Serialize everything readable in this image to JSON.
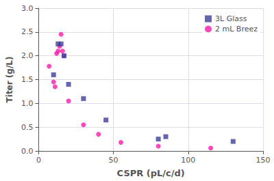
{
  "chart_data": {
    "type": "scatter",
    "xlabel": "CSPR (pL/c/d)",
    "ylabel": "Titer (g/L)",
    "xlim": [
      0,
      150
    ],
    "ylim": [
      0.0,
      3.0
    ],
    "xticks": [
      0,
      50,
      100,
      150
    ],
    "yticks": [
      {
        "value": 0.0,
        "label": "0.0"
      },
      0.5,
      {
        "value": 1.0,
        "label": "1.0"
      },
      1.5,
      {
        "value": 2.0,
        "label": "2.0"
      },
      2.5,
      {
        "value": 3.0,
        "label": "3.0"
      }
    ],
    "grid": true,
    "legend": "upper right",
    "series": [
      {
        "name": "3L Glass",
        "color": "#3d3d9e",
        "marker": "square",
        "x": [
          10,
          13,
          15,
          17,
          20,
          30,
          45,
          80,
          85,
          130
        ],
        "values": [
          1.6,
          2.25,
          2.25,
          2.0,
          1.4,
          1.1,
          0.65,
          0.25,
          0.3,
          0.2
        ]
      },
      {
        "name": "2 mL Breez",
        "color": "#ff1aaa",
        "marker": "circle",
        "x": [
          7,
          10,
          11,
          12,
          13,
          14,
          15,
          16,
          17,
          20,
          30,
          40,
          55,
          80,
          115
        ],
        "values": [
          1.78,
          1.45,
          1.35,
          2.05,
          2.1,
          2.2,
          2.45,
          2.1,
          2.0,
          1.05,
          0.55,
          0.35,
          0.18,
          0.1,
          0.06
        ]
      }
    ]
  }
}
